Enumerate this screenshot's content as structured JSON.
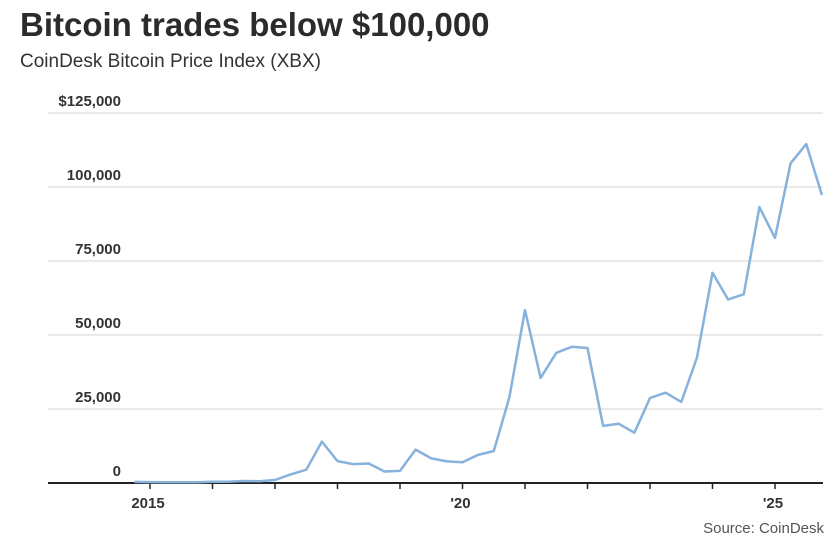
{
  "title": "Bitcoin trades below $100,000",
  "subtitle": "CoinDesk Bitcoin Price Index (XBX)",
  "source": "Source: CoinDesk",
  "colors": {
    "line": "#86b2dc",
    "grid": "#e3e3e3",
    "axis": "#222222"
  },
  "chart_data": {
    "type": "line",
    "title": "Bitcoin trades below $100,000",
    "subtitle": "CoinDesk Bitcoin Price Index (XBX)",
    "xlabel": "",
    "ylabel": "",
    "ylim": [
      0,
      125000
    ],
    "xlim": [
      2014.3,
      2025.75
    ],
    "y_ticks": [
      0,
      25000,
      50000,
      75000,
      100000,
      125000
    ],
    "y_tick_labels": [
      "0",
      "25,000",
      "50,000",
      "75,000",
      "100,000",
      "$125,000"
    ],
    "x_ticks": [
      2015,
      2016,
      2017,
      2018,
      2019,
      2020,
      2021,
      2022,
      2023,
      2024,
      2025
    ],
    "x_tick_labels": [
      "2015",
      "",
      "",
      "",
      "",
      "'20",
      "",
      "",
      "",
      "",
      "'25"
    ],
    "grid": true,
    "series": [
      {
        "name": "XBX",
        "x": [
          2014.75,
          2015,
          2015.25,
          2015.5,
          2015.75,
          2016,
          2016.25,
          2016.5,
          2016.75,
          2017,
          2017.25,
          2017.5,
          2017.75,
          2018,
          2018.25,
          2018.5,
          2018.75,
          2019,
          2019.25,
          2019.5,
          2019.75,
          2020,
          2020.25,
          2020.5,
          2020.75,
          2021,
          2021.25,
          2021.5,
          2021.75,
          2022,
          2022.25,
          2022.5,
          2022.75,
          2023,
          2023.25,
          2023.5,
          2023.75,
          2024,
          2024.25,
          2024.5,
          2024.75,
          2025,
          2025.25,
          2025.5,
          2025.75
        ],
        "values": [
          380,
          320,
          250,
          260,
          240,
          430,
          420,
          670,
          610,
          1000,
          2900,
          4500,
          14000,
          7400,
          6400,
          6600,
          3900,
          4100,
          11300,
          8300,
          7300,
          7000,
          9500,
          10800,
          29000,
          58400,
          35500,
          44000,
          46000,
          45600,
          19300,
          20000,
          17000,
          28700,
          30500,
          27400,
          42300,
          71000,
          62000,
          63800,
          93200,
          82800,
          108000,
          114500,
          97300
        ]
      }
    ]
  }
}
